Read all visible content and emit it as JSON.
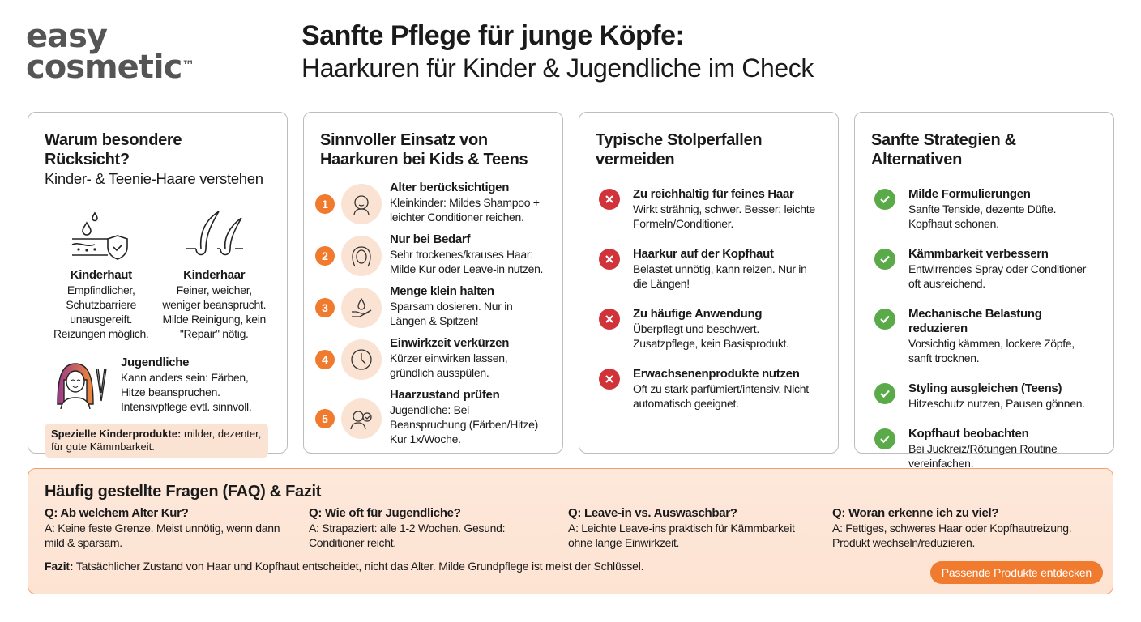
{
  "logo": {
    "line1": "easy",
    "line2": "cosmetic",
    "tm": "™"
  },
  "header": {
    "title": "Sanfte Pflege für junge Köpfe:",
    "subtitle": "Haarkuren für Kinder & Jugendliche im Check"
  },
  "colors": {
    "accent": "#f07a2d",
    "accent_light": "#fbe3d4",
    "danger": "#d0343a",
    "success": "#5aaa4a"
  },
  "card1": {
    "title": "Warum besondere Rücksicht?",
    "subtitle": "Kinder- & Teenie-Haare verstehen",
    "skin": {
      "icon": "skin-shield-icon",
      "title": "Kinderhaut",
      "text": "Empfindlicher, Schutzbarriere unausgereift. Reizungen möglich."
    },
    "hair": {
      "icon": "hair-follicle-icon",
      "title": "Kinderhaar",
      "text": "Feiner, weicher, weniger beansprucht. Milde Reinigung, kein \"Repair\" nötig."
    },
    "teen": {
      "icon": "teen-girl-straightener-icon",
      "title": "Jugendliche",
      "text": "Kann anders sein: Färben, Hitze beanspruchen. Intensivpflege evtl. sinnvoll."
    },
    "note_bold": "Spezielle Kinderprodukte:",
    "note_text": " milder, dezenter, für gute Kämmbarkeit."
  },
  "card2": {
    "title": "Sinnvoller Einsatz von Haarkuren bei Kids & Teens",
    "steps": [
      {
        "num": "1",
        "icon": "baby-icon",
        "title": "Alter berücksichtigen",
        "text": "Kleinkinder: Mildes Shampoo + leichter Conditioner reichen."
      },
      {
        "num": "2",
        "icon": "frizzy-hair-icon",
        "title": "Nur bei Bedarf",
        "text": "Sehr trockenes/krauses Haar: Milde Kur oder Leave-in nutzen."
      },
      {
        "num": "3",
        "icon": "hand-drop-icon",
        "title": "Menge klein halten",
        "text": "Sparsam dosieren. Nur in Längen & Spitzen!"
      },
      {
        "num": "4",
        "icon": "clock-icon",
        "title": "Einwirkzeit verkürzen",
        "text": "Kürzer einwirken lassen, gründlich ausspülen."
      },
      {
        "num": "5",
        "icon": "person-check-icon",
        "title": "Haarzustand prüfen",
        "text": "Jugendliche: Bei Beanspruchung (Färben/Hitze) Kur 1x/Woche."
      }
    ]
  },
  "card3": {
    "title": "Typische Stolperfallen vermeiden",
    "items": [
      {
        "title": "Zu reichhaltig für feines Haar",
        "text": "Wirkt strähnig, schwer. Besser: leichte Formeln/Conditioner."
      },
      {
        "title": "Haarkur auf der Kopfhaut",
        "text": "Belastet unnötig, kann reizen. Nur in die Längen!"
      },
      {
        "title": "Zu häufige Anwendung",
        "text": "Überpflegt und beschwert. Zusatzpflege, kein Basisprodukt."
      },
      {
        "title": "Erwachsenenprodukte nutzen",
        "text": "Oft zu stark parfümiert/intensiv. Nicht automatisch geeignet."
      }
    ]
  },
  "card4": {
    "title": "Sanfte Strategien & Alternativen",
    "items": [
      {
        "title": "Milde Formulierungen",
        "text": "Sanfte Tenside, dezente Düfte. Kopfhaut schonen."
      },
      {
        "title": "Kämmbarkeit verbessern",
        "text": "Entwirrendes Spray oder Conditioner oft ausreichend."
      },
      {
        "title": "Mechanische Belastung reduzieren",
        "text": "Vorsichtig kämmen, lockere Zöpfe, sanft trocknen."
      },
      {
        "title": "Styling ausgleichen (Teens)",
        "text": "Hitzeschutz nutzen, Pausen gönnen."
      },
      {
        "title": "Kopfhaut beobachten",
        "text": "Bei Juckreiz/Rötungen Routine vereinfachen."
      }
    ]
  },
  "faq": {
    "title": "Häufig gestellte Fragen (FAQ) & Fazit",
    "items": [
      {
        "q": "Q: Ab welchem Alter Kur?",
        "a": "A: Keine feste Grenze. Meist unnötig, wenn dann mild & sparsam."
      },
      {
        "q": "Q: Wie oft für Jugendliche?",
        "a": "A: Strapaziert: alle 1-2 Wochen. Gesund: Conditioner reicht."
      },
      {
        "q": "Q: Leave-in vs. Auswaschbar?",
        "a": "A: Leichte Leave-ins praktisch für Kämmbarkeit ohne lange Einwirkzeit."
      },
      {
        "q": "Q: Woran erkenne ich zu viel?",
        "a": "A: Fettiges, schweres Haar oder Kopfhautreizung. Produkt wechseln/reduzieren."
      }
    ],
    "fazit_label": "Fazit:",
    "fazit_text": " Tatsächlicher Zustand von Haar und Kopfhaut entscheidet, nicht das Alter. Milde Grundpflege ist meist der Schlüssel.",
    "cta": "Passende Produkte entdecken"
  }
}
